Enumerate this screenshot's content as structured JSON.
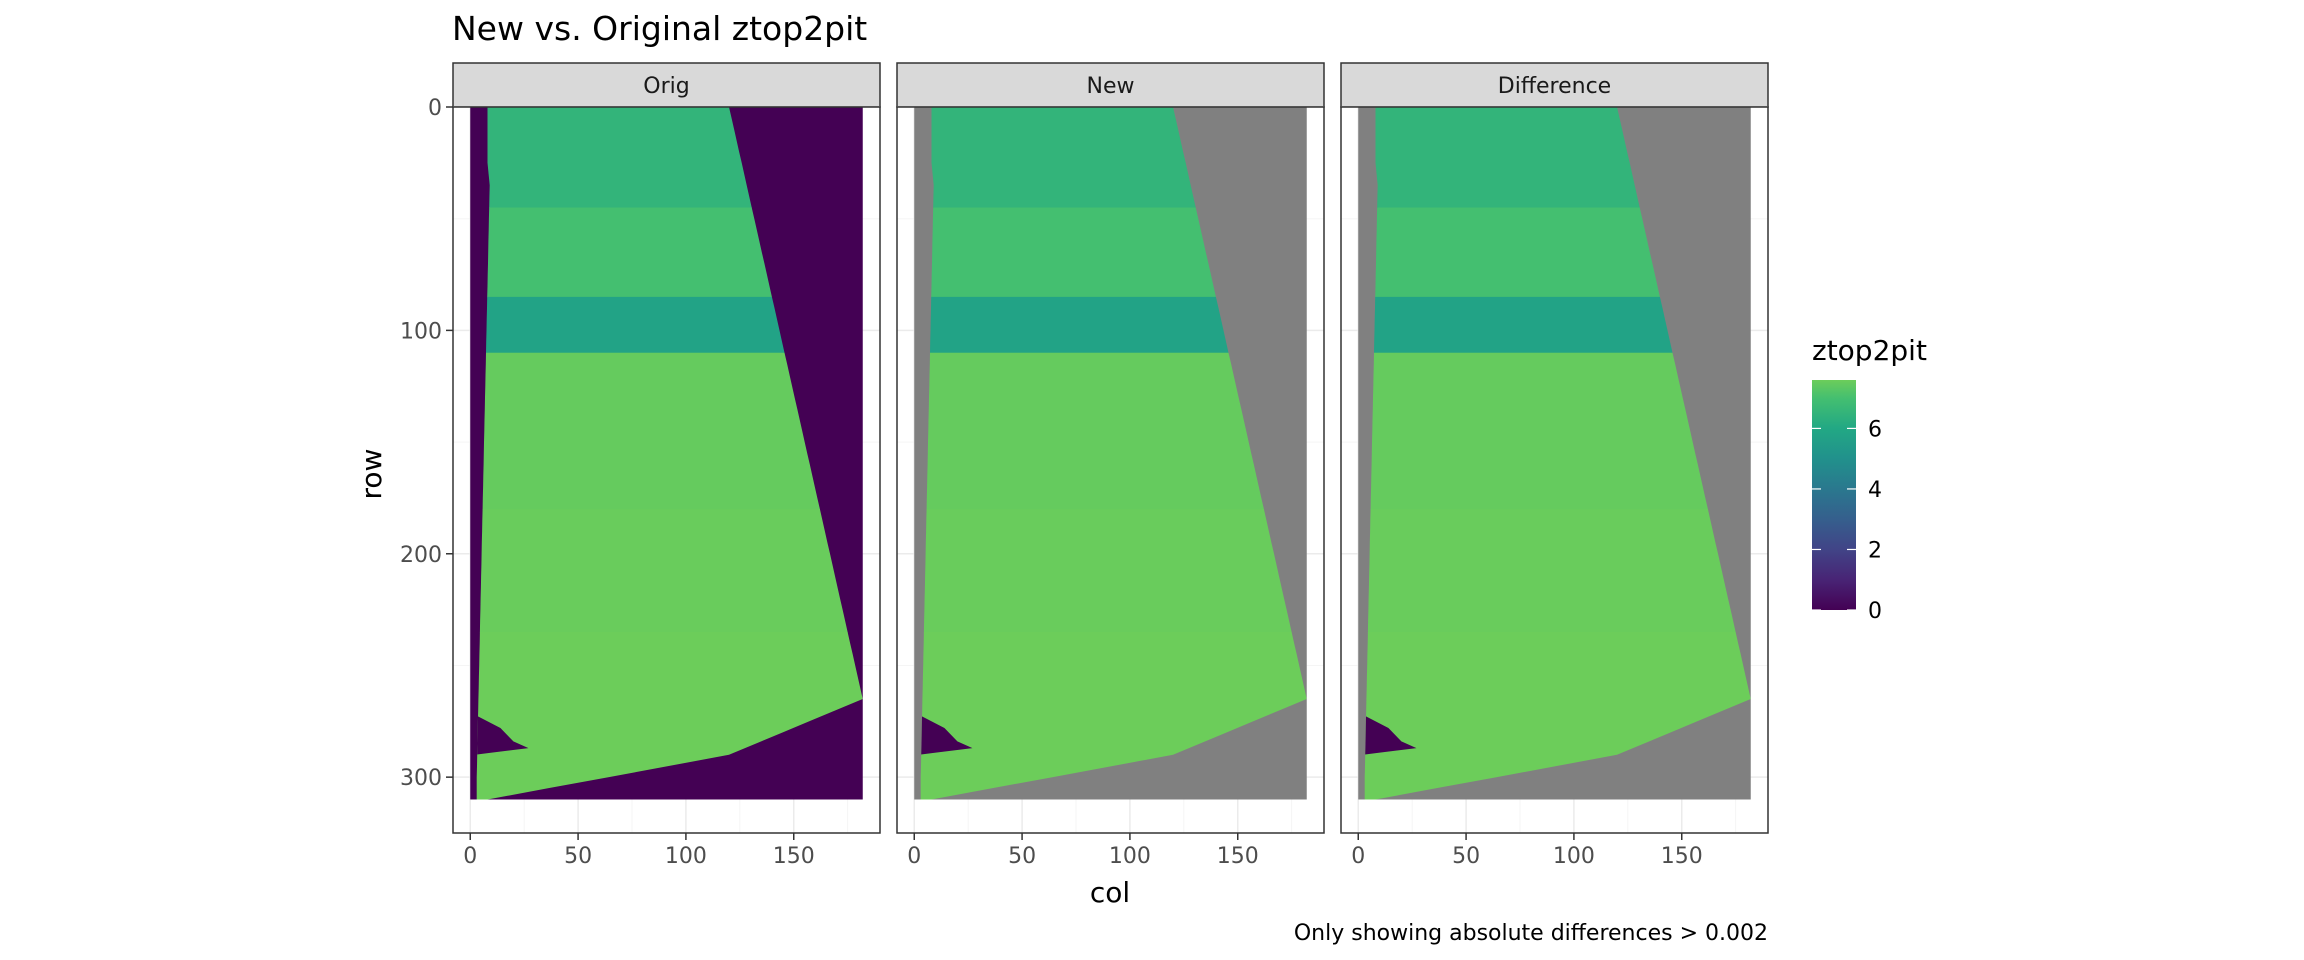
{
  "chart_data": {
    "type": "heatmap",
    "title": "New vs. Original ztop2pit",
    "caption": "Only showing absolute differences > 0.002",
    "xlabel": "col",
    "ylabel": "row",
    "xlim": [
      -8,
      190
    ],
    "ylim": [
      0,
      325
    ],
    "y_reversed": true,
    "x_ticks": [
      0,
      50,
      100,
      150
    ],
    "y_ticks": [
      0,
      100,
      200,
      300
    ],
    "grid": true,
    "legend": {
      "title": "ztop2pit",
      "position": "right",
      "range": [
        0,
        7.6
      ],
      "ticks": [
        0,
        2,
        4,
        6
      ]
    },
    "colors": {
      "na": "#808080",
      "zero": "#440154",
      "panel_border": "#333333",
      "strip_fill": "#d9d9d9",
      "grid_major": "#ebebeb",
      "grid_minor": "#f5f5f5"
    },
    "colormap": [
      [
        0,
        "#440154"
      ],
      [
        1,
        "#482475"
      ],
      [
        2,
        "#414487"
      ],
      [
        3,
        "#355f8d"
      ],
      [
        4,
        "#2a788e"
      ],
      [
        5,
        "#21918c"
      ],
      [
        6,
        "#22a884"
      ],
      [
        7,
        "#44bf70"
      ],
      [
        7.6,
        "#6ccd5a"
      ]
    ],
    "shape": {
      "rows": 310,
      "cols": 182,
      "left_boundary_rows": [
        0,
        25,
        35,
        300,
        310
      ],
      "left_boundary_cols": [
        8,
        8,
        9,
        3,
        3
      ],
      "right_boundary_rows": [
        0,
        265,
        290,
        310
      ],
      "right_boundary_cols": [
        120,
        182,
        120,
        8
      ],
      "bands": [
        {
          "row_start": 0,
          "row_end": 45,
          "value": 6.5
        },
        {
          "row_start": 45,
          "row_end": 85,
          "value": 7.0
        },
        {
          "row_start": 85,
          "row_end": 110,
          "value": 5.8
        },
        {
          "row_start": 110,
          "row_end": 180,
          "value": 7.5
        },
        {
          "row_start": 180,
          "row_end": 235,
          "value": 7.55
        },
        {
          "row_start": 235,
          "row_end": 310,
          "value": 7.6
        }
      ],
      "notch_value": 0
    },
    "panels": [
      {
        "label": "Orig",
        "outside_value": 0
      },
      {
        "label": "New",
        "outside_value": null
      },
      {
        "label": "Difference",
        "outside_value": null
      }
    ]
  }
}
